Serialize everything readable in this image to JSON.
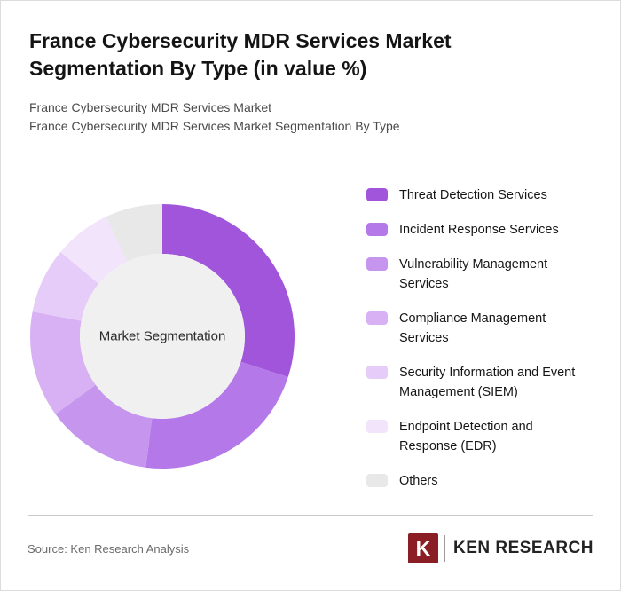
{
  "header": {
    "title": "France Cybersecurity MDR Services Market Segmentation By Type (in value %)",
    "subtitle1": "France Cybersecurity MDR Services Market",
    "subtitle2": "France Cybersecurity MDR Services Market Segmentation By Type"
  },
  "chart_data": {
    "type": "pie",
    "donut": true,
    "title": "France Cybersecurity MDR Services Market Segmentation By Type (in value %)",
    "center_label": "Market Segmentation",
    "start_angle_deg": 0,
    "direction": "clockwise",
    "legend_position": "right",
    "data_labels_shown": false,
    "categories": [
      "Threat Detection Services",
      "Incident Response Services",
      "Vulnerability Management Services",
      "Compliance Management Services",
      "Security Information and Event Management (SIEM)",
      "Endpoint Detection and Response (EDR)",
      "Others"
    ],
    "values": [
      30,
      22,
      13,
      13,
      8,
      7,
      7
    ],
    "colors": [
      "#A155DB",
      "#B478E8",
      "#C695EE",
      "#D7B1F3",
      "#E6CCF8",
      "#F2E4FB",
      "#E8E8E8"
    ],
    "center_circle_color": "#F0F0F0"
  },
  "footer": {
    "source": "Source: Ken Research Analysis",
    "logo_letter": "K",
    "logo_text": "KEN RESEARCH",
    "logo_color": "#8b1e24"
  }
}
